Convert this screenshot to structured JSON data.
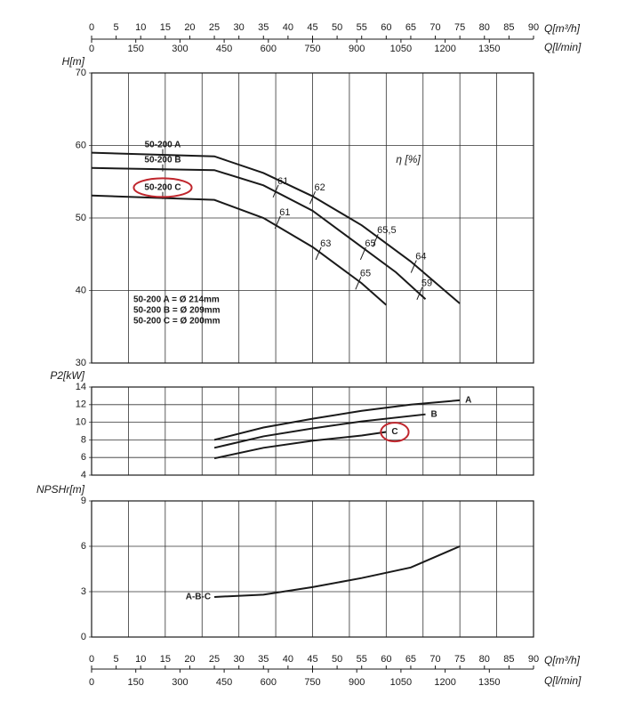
{
  "chart_data": [
    {
      "type": "line",
      "ylabel": "H[m]",
      "xlabel": "Q[m³/h]",
      "x2label": "Q[l/min]",
      "xaxis_position": "top",
      "xlim": [
        0,
        90
      ],
      "xticks": [
        0,
        5,
        10,
        15,
        20,
        25,
        30,
        35,
        40,
        45,
        50,
        55,
        60,
        65,
        70,
        75,
        80,
        85,
        90
      ],
      "x2lim": [
        0,
        1500
      ],
      "x2ticks": [
        0,
        150,
        300,
        450,
        600,
        750,
        900,
        1050,
        1200,
        1350
      ],
      "x2grid": [
        125,
        250,
        375,
        500,
        625,
        750,
        875,
        1000,
        1125,
        1250,
        1375
      ],
      "ylim": [
        30,
        70
      ],
      "yticks": [
        30,
        40,
        50,
        60,
        70
      ],
      "grid": true,
      "series_label_position": "start",
      "highlight_series": 2,
      "highlight_color": "#c0262d",
      "series": [
        {
          "name": "50-200 A",
          "color": "#1a1a1a",
          "x": [
            0,
            25,
            35,
            45,
            55,
            65,
            75
          ],
          "values": [
            59,
            58.5,
            56.2,
            53,
            49,
            44,
            38.2
          ]
        },
        {
          "name": "50-200 B",
          "color": "#1a1a1a",
          "x": [
            0,
            25,
            35,
            45,
            55,
            62,
            68
          ],
          "values": [
            56.9,
            56.6,
            54.5,
            51,
            46,
            42.5,
            38.8
          ]
        },
        {
          "name": "50-200 C",
          "color": "#1a1a1a",
          "x": [
            0,
            25,
            35,
            45,
            55,
            60
          ],
          "values": [
            53.1,
            52.5,
            50,
            46,
            41,
            38
          ]
        }
      ],
      "efficiency_label": "η [%]",
      "efficiency_label_at": [
        62,
        58
      ],
      "efficiency_marks": [
        {
          "x": 37.5,
          "y": 53.7,
          "label": "61"
        },
        {
          "x": 45,
          "y": 52.8,
          "label": "62"
        },
        {
          "x": 37.9,
          "y": 49.4,
          "label": "61"
        },
        {
          "x": 46.2,
          "y": 45.1,
          "label": "63"
        },
        {
          "x": 57.8,
          "y": 46.9,
          "label": "65,5"
        },
        {
          "x": 55.3,
          "y": 45.1,
          "label": "65"
        },
        {
          "x": 54.3,
          "y": 41,
          "label": "65"
        },
        {
          "x": 65.6,
          "y": 43.3,
          "label": "64"
        },
        {
          "x": 66.8,
          "y": 39.6,
          "label": "59"
        }
      ],
      "notes": [
        "50-200 A = Ø 214mm",
        "50-200 B = Ø 209mm",
        "50-200 C = Ø 200mm"
      ]
    },
    {
      "type": "line",
      "ylabel": "P2[kW]",
      "xlim": [
        0,
        90
      ],
      "x2lim": [
        0,
        1500
      ],
      "x2grid": [
        125,
        250,
        375,
        500,
        625,
        750,
        875,
        1000,
        1125,
        1250,
        1375
      ],
      "ylim": [
        4,
        14
      ],
      "yticks": [
        4,
        6,
        8,
        10,
        12,
        14
      ],
      "grid": true,
      "series_label_position": "end",
      "highlight_series": 2,
      "highlight_color": "#c0262d",
      "series": [
        {
          "name": "A",
          "color": "#1a1a1a",
          "x": [
            25,
            35,
            45,
            55,
            65,
            75
          ],
          "values": [
            8,
            9.4,
            10.4,
            11.3,
            12,
            12.5
          ]
        },
        {
          "name": "B",
          "color": "#1a1a1a",
          "x": [
            25,
            35,
            45,
            55,
            68
          ],
          "values": [
            7.1,
            8.4,
            9.3,
            10.1,
            10.9
          ]
        },
        {
          "name": "C",
          "color": "#1a1a1a",
          "x": [
            25,
            35,
            45,
            55,
            60
          ],
          "values": [
            5.9,
            7.1,
            7.9,
            8.5,
            8.9
          ]
        }
      ]
    },
    {
      "type": "line",
      "ylabel": "NPSHr[m]",
      "xlabel": "Q[m³/h]",
      "x2label": "Q[l/min]",
      "xaxis_position": "bottom",
      "xlim": [
        0,
        90
      ],
      "xticks": [
        0,
        5,
        10,
        15,
        20,
        25,
        30,
        35,
        40,
        45,
        50,
        55,
        60,
        65,
        70,
        75,
        80,
        85,
        90
      ],
      "x2lim": [
        0,
        1500
      ],
      "x2ticks": [
        0,
        150,
        300,
        450,
        600,
        750,
        900,
        1050,
        1200,
        1350
      ],
      "x2grid": [
        125,
        250,
        375,
        500,
        625,
        750,
        875,
        1000,
        1125,
        1250,
        1375
      ],
      "ylim": [
        0,
        9
      ],
      "yticks": [
        0,
        3,
        6,
        9
      ],
      "grid": true,
      "series_label_position": "start",
      "series": [
        {
          "name": "A-B-C",
          "color": "#1a1a1a",
          "x": [
            25,
            35,
            45,
            55,
            65,
            75
          ],
          "values": [
            2.65,
            2.8,
            3.3,
            3.9,
            4.6,
            6
          ]
        }
      ]
    }
  ]
}
